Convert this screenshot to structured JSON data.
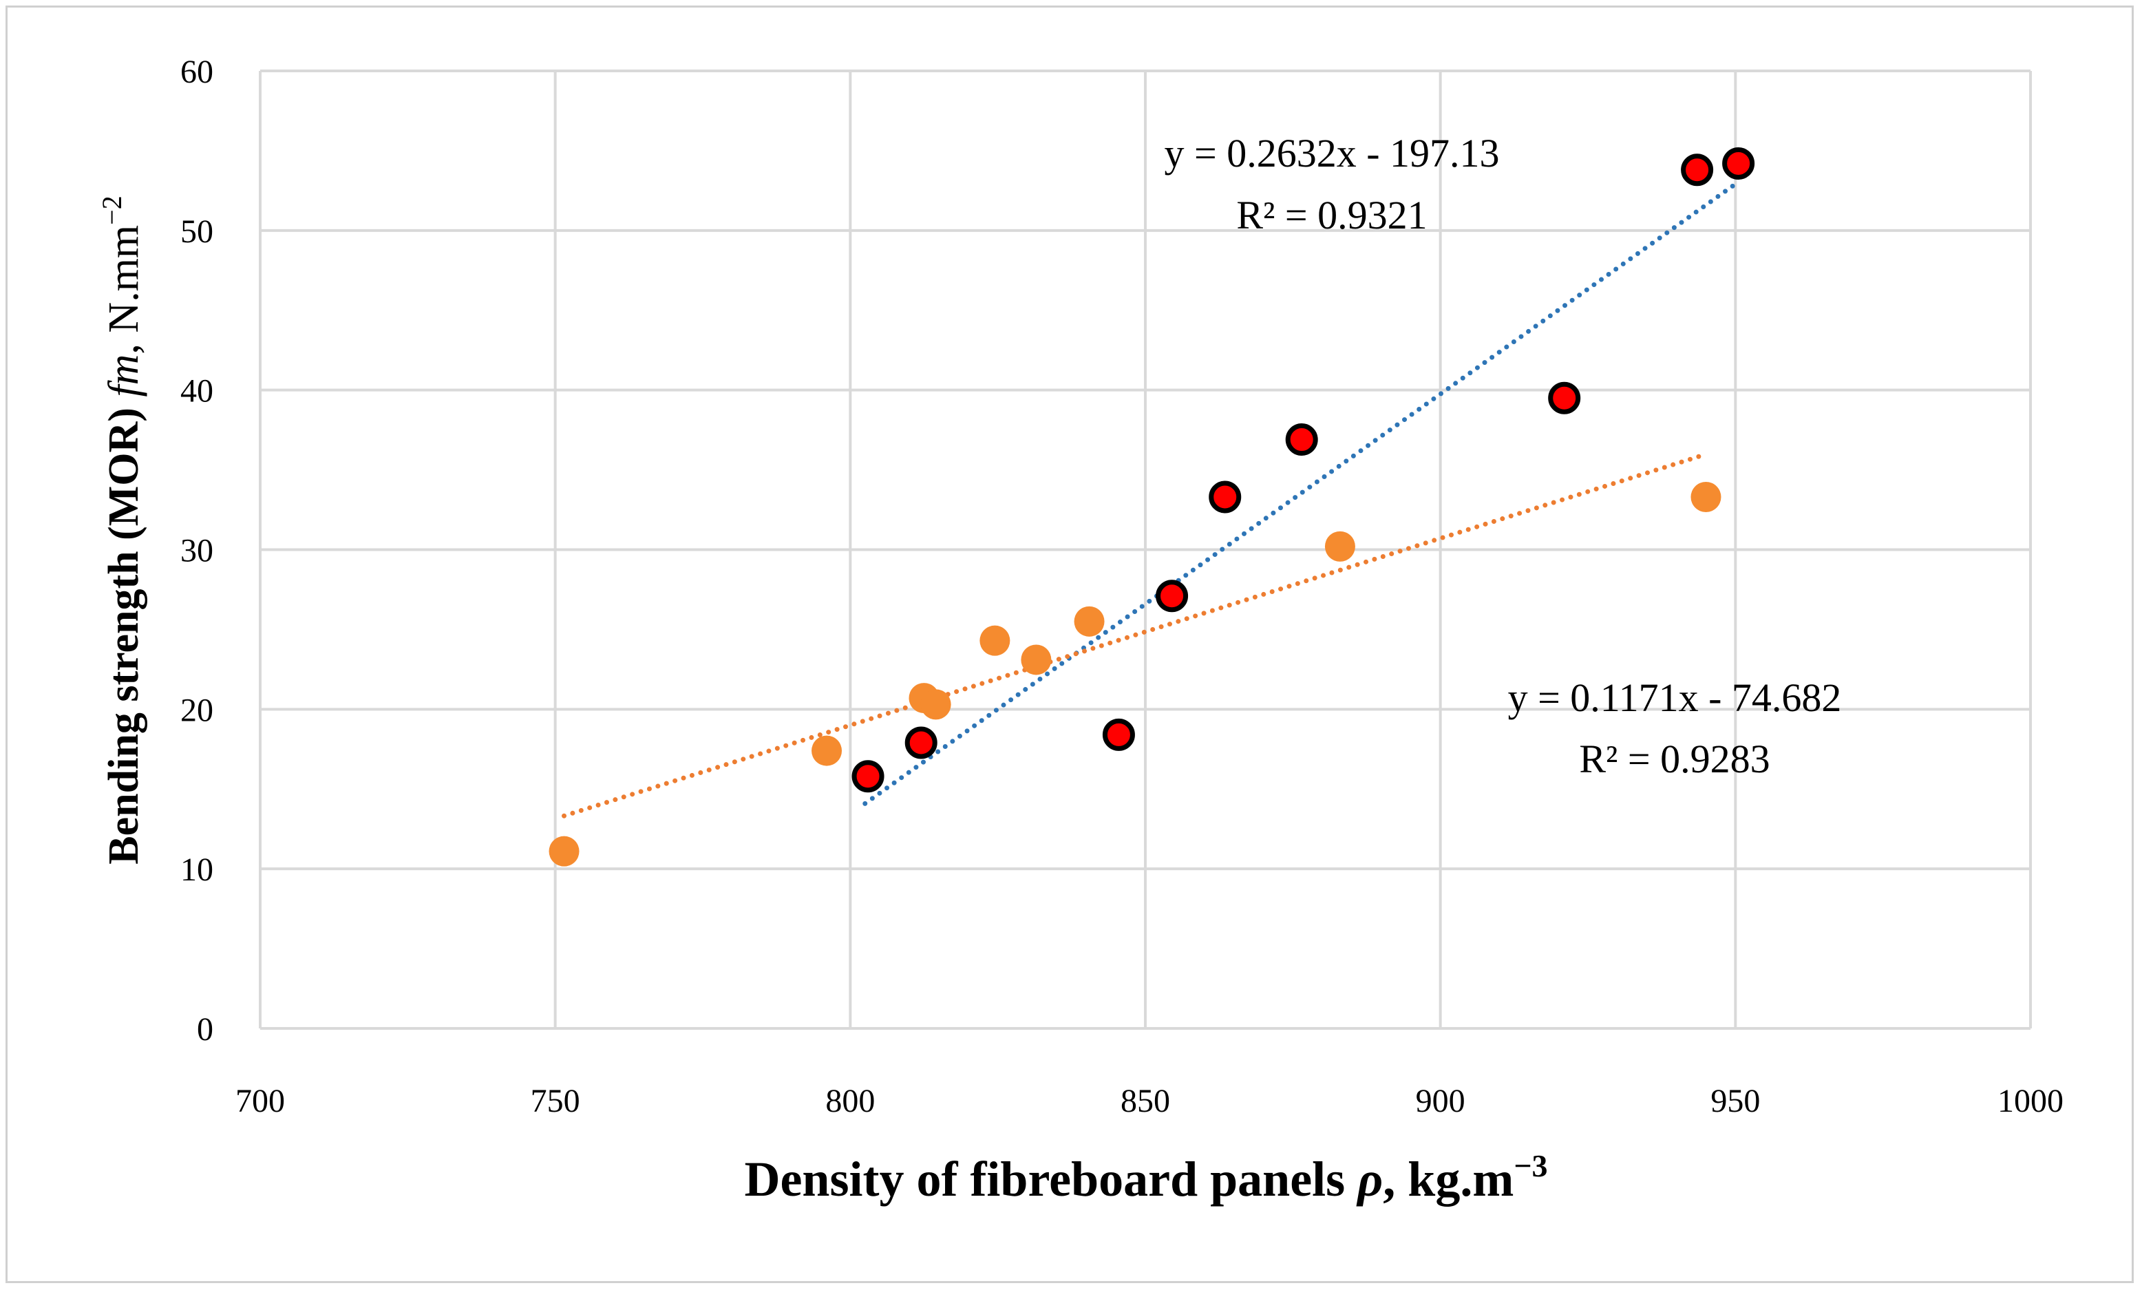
{
  "chart_data": {
    "type": "scatter",
    "xlabel": "Density of fibreboard panels ρ, kg.m⁻³",
    "xlabel_parts": {
      "main": "Density of fibreboard panels ",
      "symbol": "ρ",
      "unit": ", kg.m",
      "exp": "−3"
    },
    "ylabel": "Bending strength (MOR) fm, N.mm⁻²",
    "ylabel_parts": {
      "main": "Bending strength (MOR) ",
      "symbol": "fm",
      "unit": ", N.mm",
      "exp": "−2"
    },
    "xlim": [
      700,
      1000
    ],
    "ylim": [
      0,
      60
    ],
    "xticks": [
      700,
      750,
      800,
      850,
      900,
      950,
      1000
    ],
    "yticks": [
      0,
      10,
      20,
      30,
      40,
      50,
      60
    ],
    "grid": true,
    "series": [
      {
        "name": "red series",
        "marker_color": "#ff0000",
        "marker_edge": "#000000",
        "trend_color": "#2e75b6",
        "x": [
          803,
          812,
          845.5,
          854.5,
          863.5,
          876.5,
          921,
          943.5,
          950.5
        ],
        "y": [
          15.8,
          17.9,
          18.4,
          27.1,
          33.3,
          36.9,
          39.5,
          53.8,
          54.2
        ],
        "trendline": {
          "slope": 0.2632,
          "intercept": -197.13,
          "x_range": [
            802.5,
            950.5
          ]
        },
        "equation": "y = 0.2632x - 197.13",
        "r_squared": "R² = 0.9321"
      },
      {
        "name": "orange series",
        "marker_color": "#f58b2f",
        "trend_color": "#ed7d31",
        "x": [
          751.5,
          796,
          812.5,
          814.5,
          824.5,
          831.5,
          840.5,
          883,
          945
        ],
        "y": [
          11.1,
          17.4,
          20.7,
          20.3,
          24.3,
          23.1,
          25.5,
          30.2,
          33.3
        ],
        "trendline": {
          "slope": 0.1171,
          "intercept": -74.682,
          "x_range": [
            751.5,
            945
          ]
        },
        "equation": "y = 0.1171x - 74.682",
        "r_squared": "R² = 0.9283"
      }
    ]
  }
}
